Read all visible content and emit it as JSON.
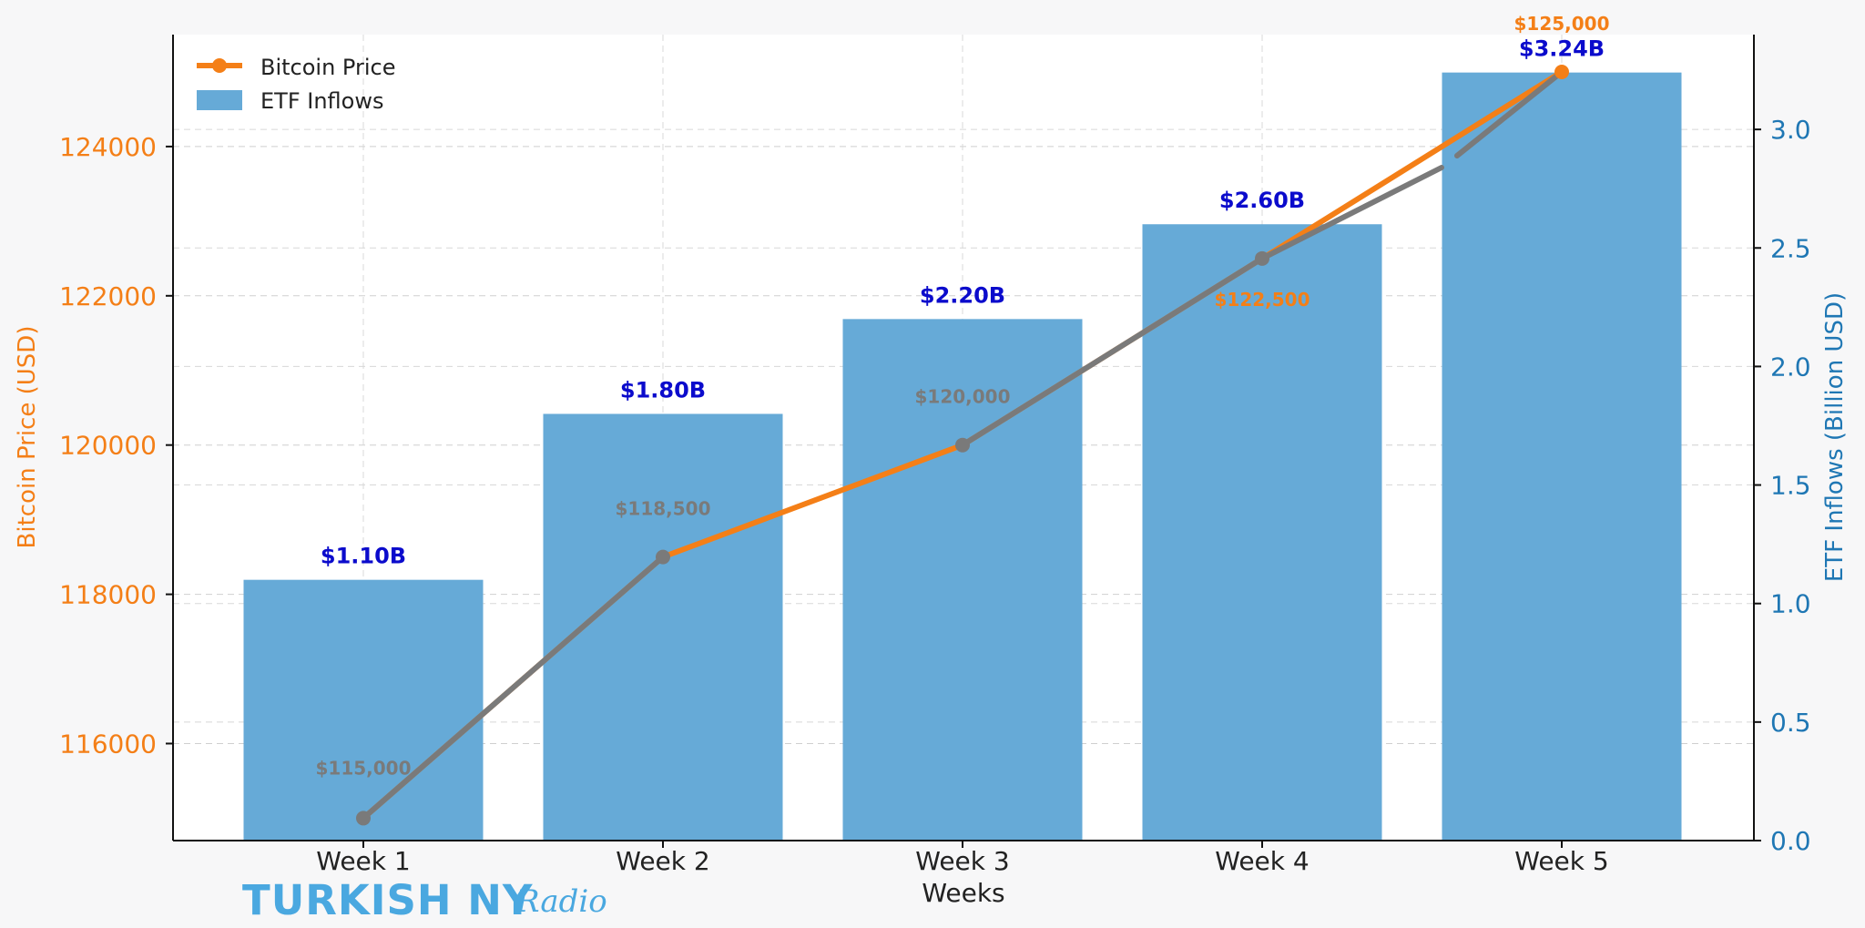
{
  "chart_data": {
    "type": "bar+line",
    "categories": [
      "Week 1",
      "Week 2",
      "Week 3",
      "Week 4",
      "Week 5"
    ],
    "xlabel": "Weeks",
    "ylabel_left": "Bitcoin Price (USD)",
    "ylabel_right": "ETF Inflows (Billion USD)",
    "ylim_left": [
      114700,
      125500
    ],
    "yticks_left": [
      116000,
      118000,
      120000,
      122000,
      124000
    ],
    "ylim_right": [
      0,
      3.4
    ],
    "yticks_right": [
      "0.0",
      "0.5",
      "1.0",
      "1.5",
      "2.0",
      "2.5",
      "3.0"
    ],
    "grid": true,
    "legend_position": "top-left",
    "series": [
      {
        "name": "Bitcoin Price",
        "kind": "line",
        "axis": "left",
        "color": "#f47f17",
        "values": [
          115000,
          118500,
          120000,
          122500,
          125000
        ],
        "labels": [
          "$115,000",
          "$118,500",
          "$120,000",
          "$122,500",
          "$125,000"
        ]
      },
      {
        "name": "ETF Inflows",
        "kind": "bar",
        "axis": "right",
        "color": "#66aad7",
        "values": [
          1.1,
          1.8,
          2.2,
          2.6,
          3.24
        ],
        "labels": [
          "$1.10B",
          "$1.80B",
          "$2.20B",
          "$2.60B",
          "$3.24B"
        ]
      }
    ],
    "colors": {
      "left_axis": "#f47f17",
      "right_axis": "#1f77b4",
      "bar_label": "#0b0bcc",
      "line_overlay": "#7a7a7a",
      "price_label_hidden": "#7a7a7a"
    }
  },
  "watermark": {
    "main": "TURKISH NY",
    "script": "Radio",
    "color": "#4aa8e0"
  }
}
